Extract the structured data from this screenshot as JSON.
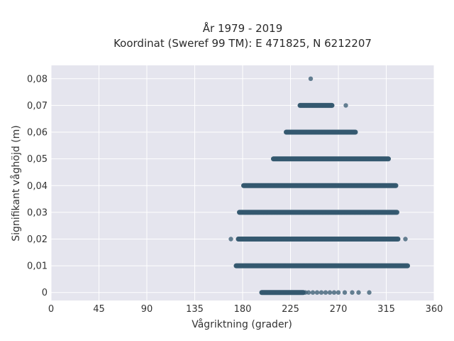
{
  "chart_data": {
    "type": "scatter",
    "title_line1": "År 1979 - 2019",
    "title_line2": "Koordinat (Sweref 99 TM): E 471825, N 6212207",
    "xlabel": "Vågriktning (grader)",
    "ylabel": "Signifikant våghöjd (m)",
    "xlim": [
      0,
      360
    ],
    "ylim": [
      -0.003,
      0.085
    ],
    "x_ticks": [
      0,
      45,
      90,
      135,
      180,
      225,
      270,
      315,
      360
    ],
    "x_tick_labels": [
      "0",
      "45",
      "90",
      "135",
      "180",
      "225",
      "270",
      "315",
      "360"
    ],
    "y_ticks": [
      0,
      0.01,
      0.02,
      0.03,
      0.04,
      0.05,
      0.06,
      0.07,
      0.08
    ],
    "y_tick_labels": [
      "0",
      "0,01",
      "0,02",
      "0,03",
      "0,04",
      "0,05",
      "0,06",
      "0,07",
      "0,08"
    ],
    "grid": true,
    "colors": {
      "marker": "#34586f",
      "plot_background": "#e5e5ee",
      "grid": "#ffffff"
    },
    "series": [
      {
        "bands": [
          {
            "y": 0.0,
            "x_min": 198,
            "x_max": 237,
            "isolated_x": [
              239,
              242,
              246,
              250,
              254,
              258,
              262,
              266,
              270,
              276,
              283,
              289,
              299
            ]
          },
          {
            "y": 0.01,
            "x_min": 174,
            "x_max": 335,
            "isolated_x": []
          },
          {
            "y": 0.02,
            "x_min": 176,
            "x_max": 326,
            "isolated_x": [
              169,
              333
            ]
          },
          {
            "y": 0.03,
            "x_min": 177,
            "x_max": 325,
            "isolated_x": []
          },
          {
            "y": 0.04,
            "x_min": 181,
            "x_max": 324,
            "isolated_x": []
          },
          {
            "y": 0.05,
            "x_min": 209,
            "x_max": 317,
            "isolated_x": []
          },
          {
            "y": 0.06,
            "x_min": 221,
            "x_max": 286,
            "isolated_x": []
          },
          {
            "y": 0.07,
            "x_min": 234,
            "x_max": 264,
            "isolated_x": [
              277
            ]
          },
          {
            "y": 0.08,
            "x_min": 244,
            "x_max": 244,
            "isolated_x": []
          }
        ]
      }
    ]
  }
}
